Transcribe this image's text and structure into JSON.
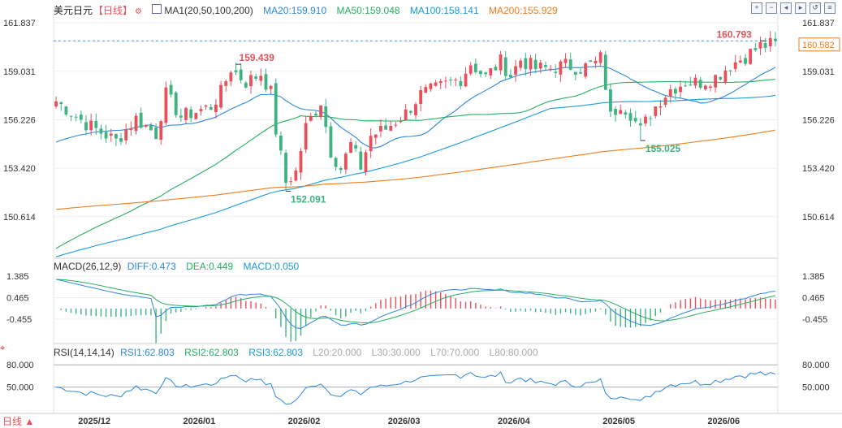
{
  "header": {
    "symbol": "美元日元",
    "period": "【日线】",
    "ma_label": "MA1(20,50,100,200)",
    "ma20": "MA20:159.910",
    "ma50": "MA50:159.048",
    "ma100": "MA100:158.141",
    "ma200": "MA200:155.929"
  },
  "macd_header": {
    "label": "MACD(26,12,9)",
    "diff": "DIFF:0.473",
    "dea": "DEA:0.449",
    "macd": "MACD:0.050"
  },
  "rsi_header": {
    "label": "RSI(14,14,14)",
    "rsi1": "RSI1:62.803",
    "rsi2": "RSI2:62.803",
    "rsi3": "RSI3:62.803",
    "l20": "L20:20.000",
    "l30": "L30:30.000",
    "l70": "L70:70.000",
    "l80": "L80:80.000"
  },
  "footer": {
    "period_label": "日线"
  },
  "colors": {
    "up": "#e8505b",
    "down": "#3fb37f",
    "ma20": "#2e86de",
    "ma50": "#27ae60",
    "ma100": "#1a9bd7",
    "ma200": "#f07c1e",
    "diff": "#2e86de",
    "dea": "#27ae60",
    "price_tag": "#f07c1e"
  },
  "toolbar_icons": [
    "zoom-in-icon",
    "zoom-out-icon",
    "move-left-icon",
    "move-right-icon",
    "reset-icon",
    "settings-icon"
  ],
  "chart_data": {
    "type": "candlestick",
    "price_axis": {
      "ticks": [
        161.837,
        159.031,
        156.226,
        153.42,
        150.614
      ],
      "range": [
        148.3,
        162.5
      ]
    },
    "macd_axis": {
      "ticks": [
        1.385,
        0.465,
        -0.455
      ],
      "range": [
        -1.4,
        1.6
      ]
    },
    "rsi_axis": {
      "ticks": [
        80.0,
        50.0
      ],
      "range": [
        18,
        90
      ]
    },
    "x_labels": [
      {
        "text": "2025/12",
        "bar": 8
      },
      {
        "text": "2026/01",
        "bar": 29
      },
      {
        "text": "2026/02",
        "bar": 50
      },
      {
        "text": "2026/03",
        "bar": 70
      },
      {
        "text": "2026/04",
        "bar": 92
      },
      {
        "text": "2026/05",
        "bar": 113
      },
      {
        "text": "2026/06",
        "bar": 134
      }
    ],
    "current_price": 160.582,
    "reference_line": 160.793,
    "annotations": [
      {
        "text": "159.439",
        "bar": 36,
        "value": 159.439,
        "kind": "high"
      },
      {
        "text": "152.091",
        "bar": 46,
        "value": 152.091,
        "kind": "low"
      },
      {
        "text": "160.793",
        "bar": 141,
        "value": 160.793,
        "kind": "high"
      },
      {
        "text": "155.025",
        "bar": 117,
        "value": 155.025,
        "kind": "low"
      }
    ],
    "waypoints": [
      [
        0,
        157.3
      ],
      [
        6,
        156.0
      ],
      [
        12,
        155.0
      ],
      [
        16,
        156.3
      ],
      [
        20,
        155.4
      ],
      [
        22,
        157.7
      ],
      [
        25,
        156.4
      ],
      [
        28,
        156.7
      ],
      [
        31,
        157.0
      ],
      [
        33,
        157.8
      ],
      [
        35,
        159.2
      ],
      [
        38,
        158.4
      ],
      [
        41,
        158.9
      ],
      [
        43,
        157.8
      ],
      [
        44,
        155.6
      ],
      [
        46,
        152.6
      ],
      [
        48,
        153.2
      ],
      [
        50,
        155.8
      ],
      [
        53,
        157.3
      ],
      [
        55,
        154.4
      ],
      [
        57,
        153.4
      ],
      [
        59,
        154.8
      ],
      [
        61,
        153.5
      ],
      [
        63,
        155.3
      ],
      [
        66,
        155.7
      ],
      [
        70,
        156.6
      ],
      [
        73,
        157.7
      ],
      [
        76,
        158.0
      ],
      [
        79,
        158.4
      ],
      [
        81,
        158.6
      ],
      [
        83,
        159.5
      ],
      [
        86,
        158.7
      ],
      [
        89,
        159.6
      ],
      [
        91,
        158.8
      ],
      [
        93,
        159.7
      ],
      [
        96,
        159.2
      ],
      [
        99,
        159.2
      ],
      [
        102,
        159.4
      ],
      [
        105,
        159.2
      ],
      [
        108,
        159.5
      ],
      [
        109,
        159.8
      ],
      [
        110,
        158.2
      ],
      [
        111,
        156.4
      ],
      [
        113,
        157.2
      ],
      [
        115,
        156.6
      ],
      [
        117,
        155.6
      ],
      [
        119,
        156.6
      ],
      [
        121,
        157.4
      ],
      [
        123,
        158.0
      ],
      [
        126,
        158.4
      ],
      [
        129,
        158.4
      ],
      [
        132,
        158.7
      ],
      [
        135,
        159.4
      ],
      [
        138,
        159.9
      ],
      [
        141,
        160.5
      ],
      [
        144,
        160.6
      ]
    ],
    "series": [
      {
        "name": "MA20",
        "period": 20
      },
      {
        "name": "MA50",
        "period": 50
      },
      {
        "name": "MA100",
        "period": 100
      },
      {
        "name": "MA200",
        "period": 200
      },
      {
        "name": "DIFF"
      },
      {
        "name": "DEA"
      },
      {
        "name": "MACD"
      },
      {
        "name": "RSI1"
      }
    ]
  }
}
